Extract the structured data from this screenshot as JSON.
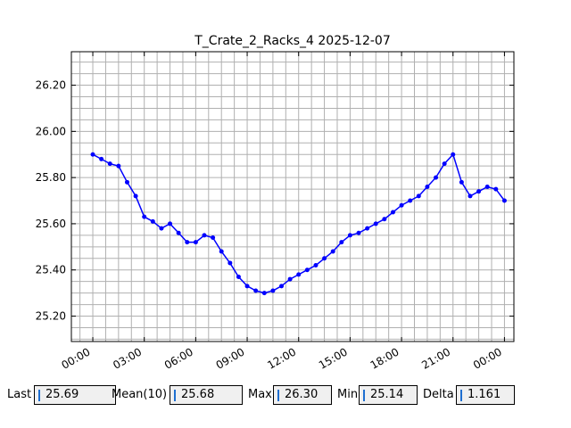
{
  "chart_data": {
    "type": "line",
    "title": "T_Crate_2_Racks_4 2025-12-07",
    "xlabel": "",
    "ylabel": "",
    "x_unit": "hours since 00:00 on 2025-12-07",
    "xlim": [
      -1.25,
      24.55
    ],
    "ylim": [
      25.09,
      26.345
    ],
    "x_ticks": [
      0,
      3,
      6,
      9,
      12,
      15,
      18,
      21,
      24
    ],
    "x_tick_labels": [
      "00:00",
      "03:00",
      "06:00",
      "09:00",
      "12:00",
      "15:00",
      "18:00",
      "21:00",
      "00:00"
    ],
    "y_ticks": [
      25.2,
      25.4,
      25.6,
      25.8,
      26.0,
      26.2
    ],
    "y_tick_labels": [
      "25.20",
      "25.40",
      "25.60",
      "25.80",
      "26.00",
      "26.20"
    ],
    "grid": true,
    "series_color": "#0000ff",
    "series": [
      {
        "name": "",
        "x": [
          0.0,
          0.5,
          1.0,
          1.5,
          2.0,
          2.5,
          3.0,
          3.5,
          4.0,
          4.5,
          5.0,
          5.5,
          6.0,
          6.5,
          7.0,
          7.5,
          8.0,
          8.5,
          9.0,
          9.5,
          10.0,
          10.5,
          11.0,
          11.5,
          12.0,
          12.5,
          13.0,
          13.5,
          14.0,
          14.5,
          15.0,
          15.5,
          16.0,
          16.5,
          17.0,
          17.5,
          18.0,
          18.5,
          19.0,
          19.5,
          20.0,
          20.5,
          21.0,
          21.5,
          22.0,
          22.5,
          23.0,
          23.5,
          24.0
        ],
        "y": [
          25.9,
          25.88,
          25.86,
          25.85,
          25.78,
          25.72,
          25.63,
          25.61,
          25.58,
          25.6,
          25.56,
          25.52,
          25.52,
          25.55,
          25.54,
          25.48,
          25.43,
          25.37,
          25.33,
          25.31,
          25.3,
          25.31,
          25.33,
          25.36,
          25.38,
          25.4,
          25.42,
          25.45,
          25.48,
          25.52,
          25.55,
          25.56,
          25.58,
          25.6,
          25.62,
          25.65,
          25.68,
          25.7,
          25.72,
          25.76,
          25.8,
          25.86,
          25.9,
          25.78,
          25.72,
          25.74,
          25.76,
          25.75,
          25.7
        ]
      }
    ]
  },
  "stats": {
    "last_label": "Last",
    "last_value": "25.69",
    "mean_label": "Mean(10)",
    "mean_value": "25.68",
    "max_label": "Max",
    "max_value": "26.30",
    "min_label": "Min",
    "min_value": "25.14",
    "delta_label": "Delta",
    "delta_value": "1.161"
  }
}
